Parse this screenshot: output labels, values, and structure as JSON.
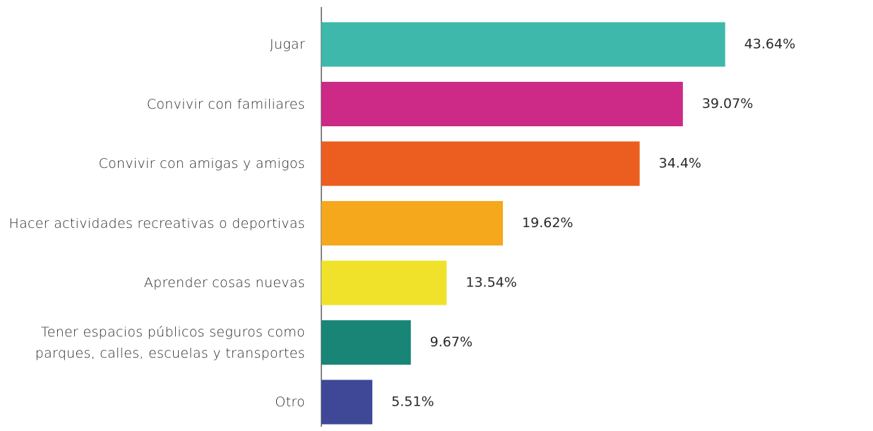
{
  "chart_data": {
    "type": "bar",
    "orientation": "horizontal",
    "categories": [
      "Jugar",
      "Convivir con familiares",
      "Convivir con amigas y amigos",
      "Hacer actividades recreativas o deportivas",
      "Aprender cosas nuevas",
      "Tener espacios públicos seguros como parques, calles, escuelas y transportes",
      "Otro"
    ],
    "values": [
      43.64,
      39.07,
      34.4,
      19.62,
      13.54,
      9.67,
      5.51
    ],
    "value_labels": [
      "43.64%",
      "39.07%",
      "34.4%",
      "19.62%",
      "13.54%",
      "9.67%",
      "5.51%"
    ],
    "colors": [
      "#3db8aa",
      "#cc2a86",
      "#eb5e1f",
      "#f5a81c",
      "#f0e22a",
      "#188577",
      "#3f4897"
    ]
  }
}
